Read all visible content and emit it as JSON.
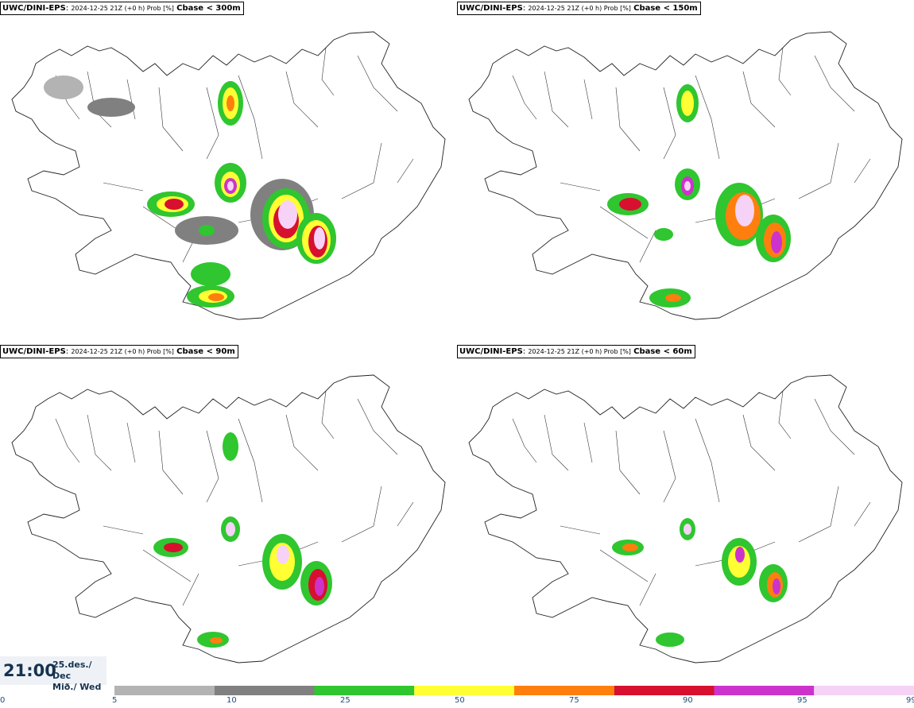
{
  "panels": [
    {
      "model": "UWC/DINI-EPS",
      "meta": "2024-12-25 21Z (+0 h) Prob [%]",
      "threshold": "Cbase < 300m"
    },
    {
      "model": "UWC/DINI-EPS",
      "meta": "2024-12-25 21Z (+0 h) Prob [%]",
      "threshold": "Cbase < 150m"
    },
    {
      "model": "UWC/DINI-EPS",
      "meta": "2024-12-25 21Z (+0 h) Prob [%]",
      "threshold": "Cbase < 90m"
    },
    {
      "model": "UWC/DINI-EPS",
      "meta": "2024-12-25 21Z (+0 h) Prob [%]",
      "threshold": "Cbase < 60m"
    }
  ],
  "clock": {
    "time": "21:00",
    "date_line1": "25.des./ Dec",
    "date_line2": "Mið./ Wed"
  },
  "legend": {
    "ticks": [
      "0",
      "5",
      "10",
      "25",
      "50",
      "75",
      "90",
      "95",
      "99"
    ],
    "bins": [
      {
        "from": 5,
        "to": 10,
        "color": "#b3b3b3"
      },
      {
        "from": 10,
        "to": 25,
        "color": "#808080"
      },
      {
        "from": 25,
        "to": 50,
        "color": "#2fc62f"
      },
      {
        "from": 50,
        "to": 75,
        "color": "#ffff33"
      },
      {
        "from": 75,
        "to": 90,
        "color": "#ff7f0e"
      },
      {
        "from": 90,
        "to": 95,
        "color": "#d7102f"
      },
      {
        "from": 95,
        "to": 99,
        "color": "#cc33cc"
      },
      {
        "from": 99,
        "to": 100,
        "color": "#f6d2f6"
      }
    ]
  }
}
